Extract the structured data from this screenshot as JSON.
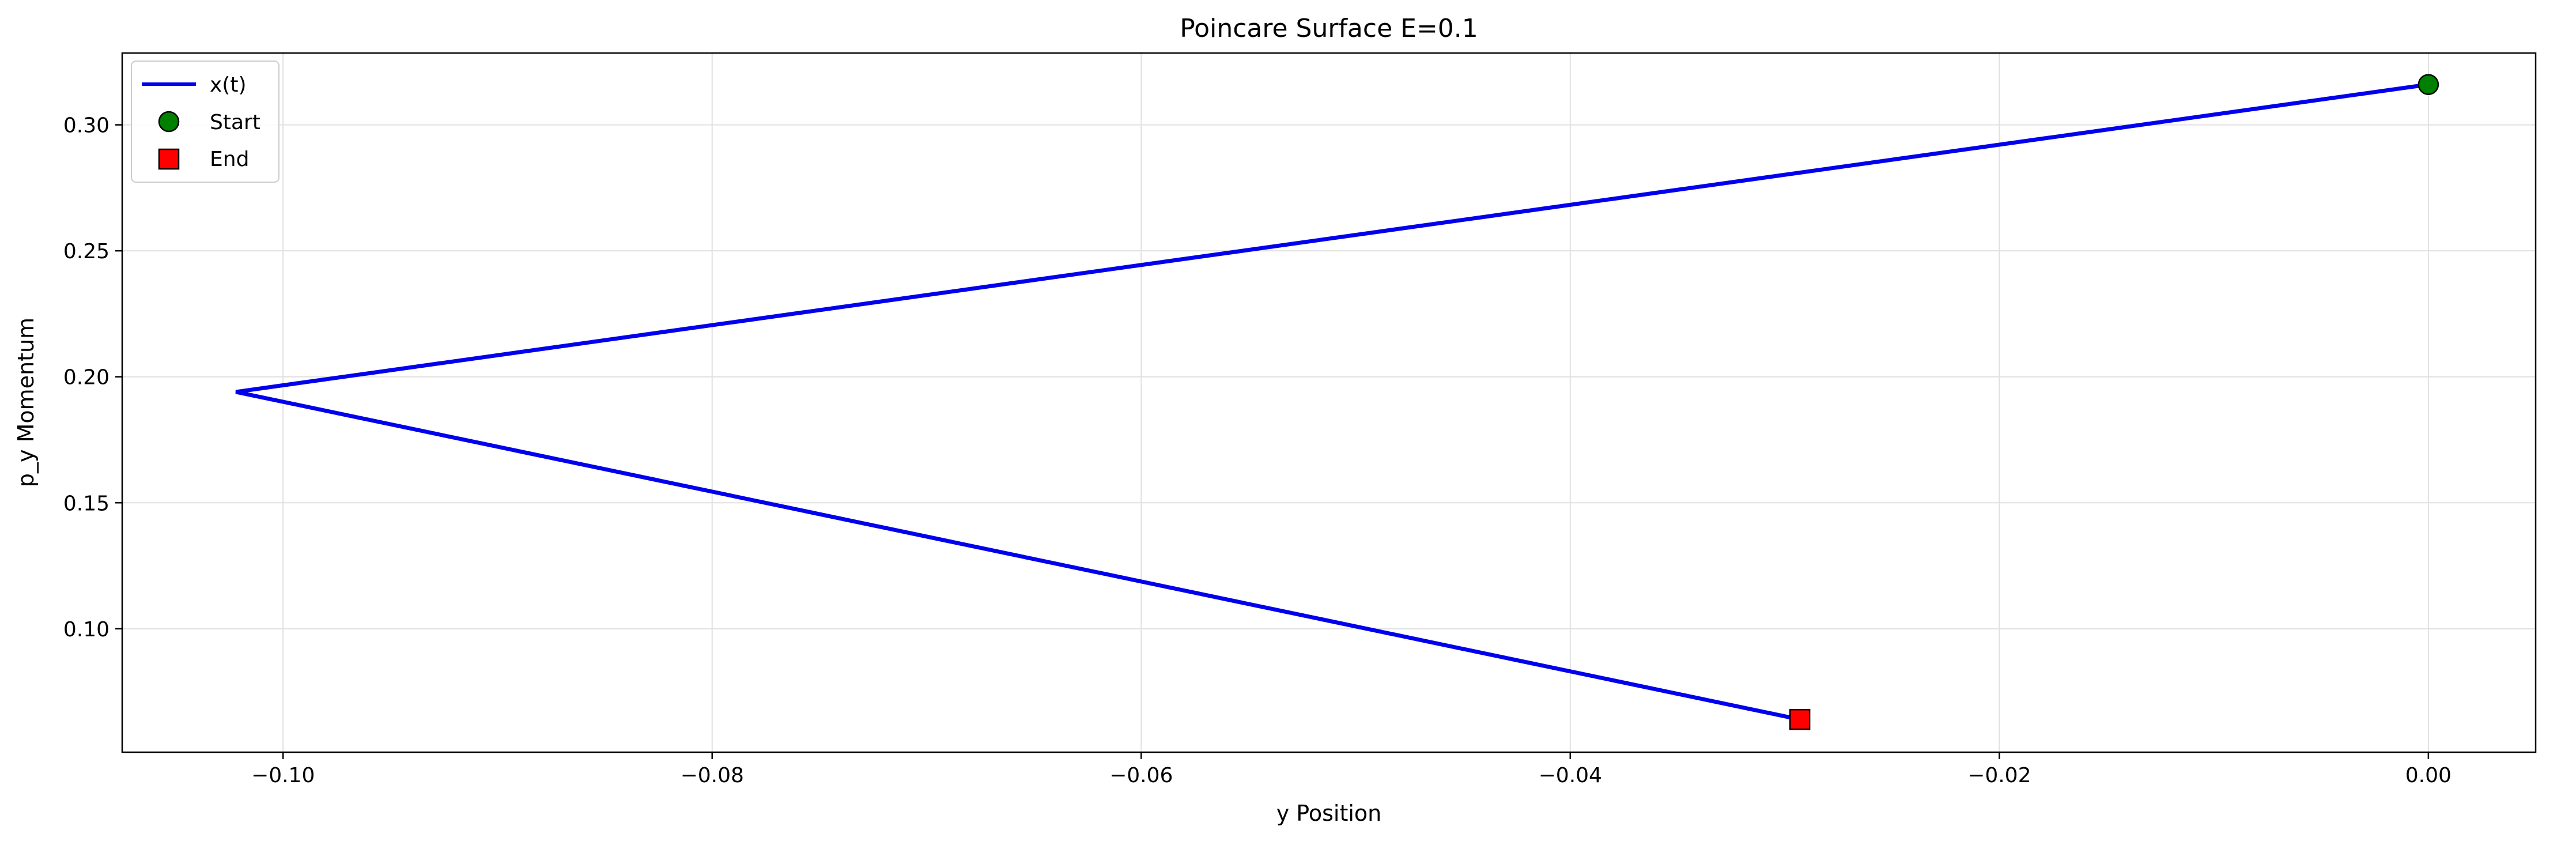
{
  "chart_data": {
    "type": "line",
    "title": "Poincare Surface E=0.1",
    "xlabel": "y Position",
    "ylabel": "p_y Momentum",
    "xlim": [
      -0.1075,
      0.005
    ],
    "ylim": [
      0.051,
      0.3285
    ],
    "xticks": [
      -0.1,
      -0.08,
      -0.06,
      -0.04,
      -0.02,
      0.0
    ],
    "xtick_labels": [
      "−0.10",
      "−0.08",
      "−0.06",
      "−0.04",
      "−0.02",
      "0.00"
    ],
    "yticks": [
      0.1,
      0.15,
      0.2,
      0.25,
      0.3
    ],
    "ytick_labels": [
      "0.10",
      "0.15",
      "0.20",
      "0.25",
      "0.30"
    ],
    "grid": true,
    "legend_position": "top-left",
    "series": [
      {
        "name": "x(t)",
        "color": "#0000ee",
        "x": [
          0.0,
          -0.1022,
          -0.0293
        ],
        "y": [
          0.316,
          0.194,
          0.064
        ]
      }
    ],
    "markers": [
      {
        "name": "Start",
        "shape": "circle",
        "color": "#008000",
        "x": 0.0,
        "y": 0.316
      },
      {
        "name": "End",
        "shape": "square",
        "color": "#ff0000",
        "x": -0.0293,
        "y": 0.064
      }
    ]
  }
}
